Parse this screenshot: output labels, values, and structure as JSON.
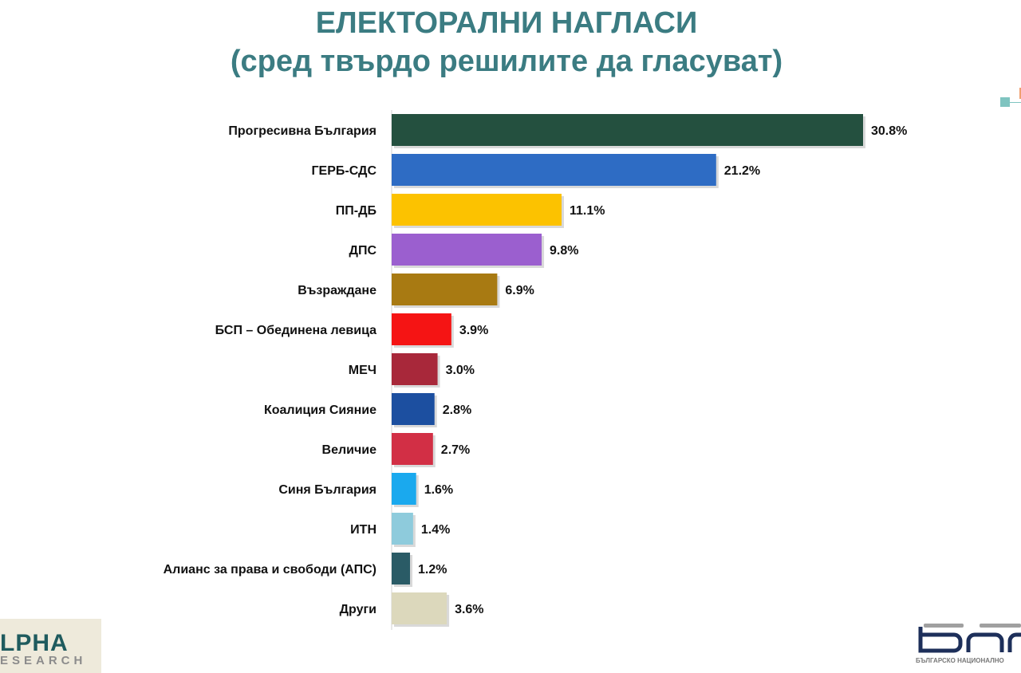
{
  "chart_data": {
    "type": "bar",
    "orientation": "horizontal",
    "title": "ЕЛЕКТОРАЛНИ НАГЛАСИ",
    "subtitle": "(сред твърдо решилите да гласуват)",
    "categories": [
      "Прогресивна България",
      "ГЕРБ-СДС",
      "ПП-ДБ",
      "ДПС",
      "Възраждане",
      "БСП – Обединена левица",
      "МЕЧ",
      "Коалиция Сияние",
      "Величие",
      "Синя България",
      "ИТН",
      "Алианс за права и свободи (АПС)",
      "Други"
    ],
    "values": [
      30.8,
      21.2,
      11.1,
      9.8,
      6.9,
      3.9,
      3.0,
      2.8,
      2.7,
      1.6,
      1.4,
      1.2,
      3.6
    ],
    "value_labels": [
      "30.8%",
      "21.2%",
      "11.1%",
      "9.8%",
      "6.9%",
      "3.9%",
      "3.0%",
      "2.8%",
      "2.7%",
      "1.6%",
      "1.4%",
      "1.2%",
      "3.6%"
    ],
    "colors": [
      "#24503f",
      "#2e6cc4",
      "#fcc200",
      "#9b5fcf",
      "#a87a12",
      "#f51414",
      "#a8283a",
      "#1c4fa0",
      "#d22f45",
      "#1aa9ee",
      "#8ecbdc",
      "#2a5b66",
      "#dcd8bc"
    ],
    "unit": "%",
    "grid": false,
    "legend": "none"
  },
  "logos": {
    "left": {
      "main": "LPHA",
      "sub": "ESEARCH"
    },
    "right": {
      "main": "БНР",
      "sub": "БЪЛГАРСКО НАЦИОНАЛНО"
    }
  },
  "title_color": "#3b7c82"
}
